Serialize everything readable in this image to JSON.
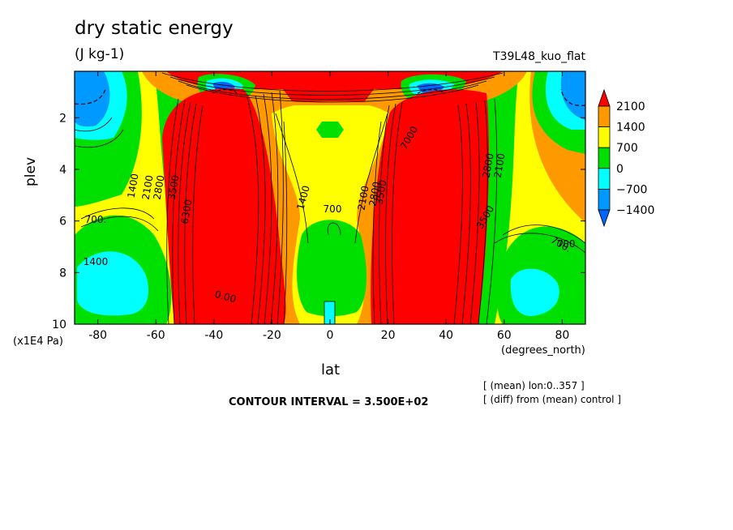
{
  "chart_data": {
    "type": "heatmap",
    "title": "dry static energy",
    "units": "(J kg-1)",
    "dataset": "T39L48_kuo_flat",
    "xlabel": "lat",
    "xunit": "(degrees_north)",
    "ylabel": "plev",
    "yunit": "(x1E4 Pa)",
    "xlim": [
      -88,
      88
    ],
    "ylim": [
      10,
      0.2
    ],
    "x_ticks": [
      "-80",
      "-60",
      "-40",
      "-20",
      "0",
      "20",
      "40",
      "60",
      "80"
    ],
    "y_ticks": [
      "2",
      "4",
      "6",
      "8",
      "10"
    ],
    "colorbar": {
      "levels": [
        "2100",
        "1400",
        "700",
        "0",
        "−700",
        "−1400"
      ],
      "colors": [
        "#ff0000",
        "#ff9900",
        "#ffff00",
        "#00e000",
        "#00ffff",
        "#0099ff",
        "#0066ff"
      ]
    },
    "contour_labels": [
      "700.",
      "700.",
      "1400",
      "2100",
      "2800",
      "3500",
      "6300",
      "0.00",
      "1400",
      "1400",
      "2100",
      "2800",
      "3500",
      "700",
      "700.",
      "2100",
      "2800",
      "3500",
      "7000"
    ],
    "notes": [
      "[ (mean) lon:0..357 ]",
      "[ (diff) from (mean) control ]"
    ],
    "contour_interval": "CONTOUR INTERVAL = 3.500E+02"
  }
}
